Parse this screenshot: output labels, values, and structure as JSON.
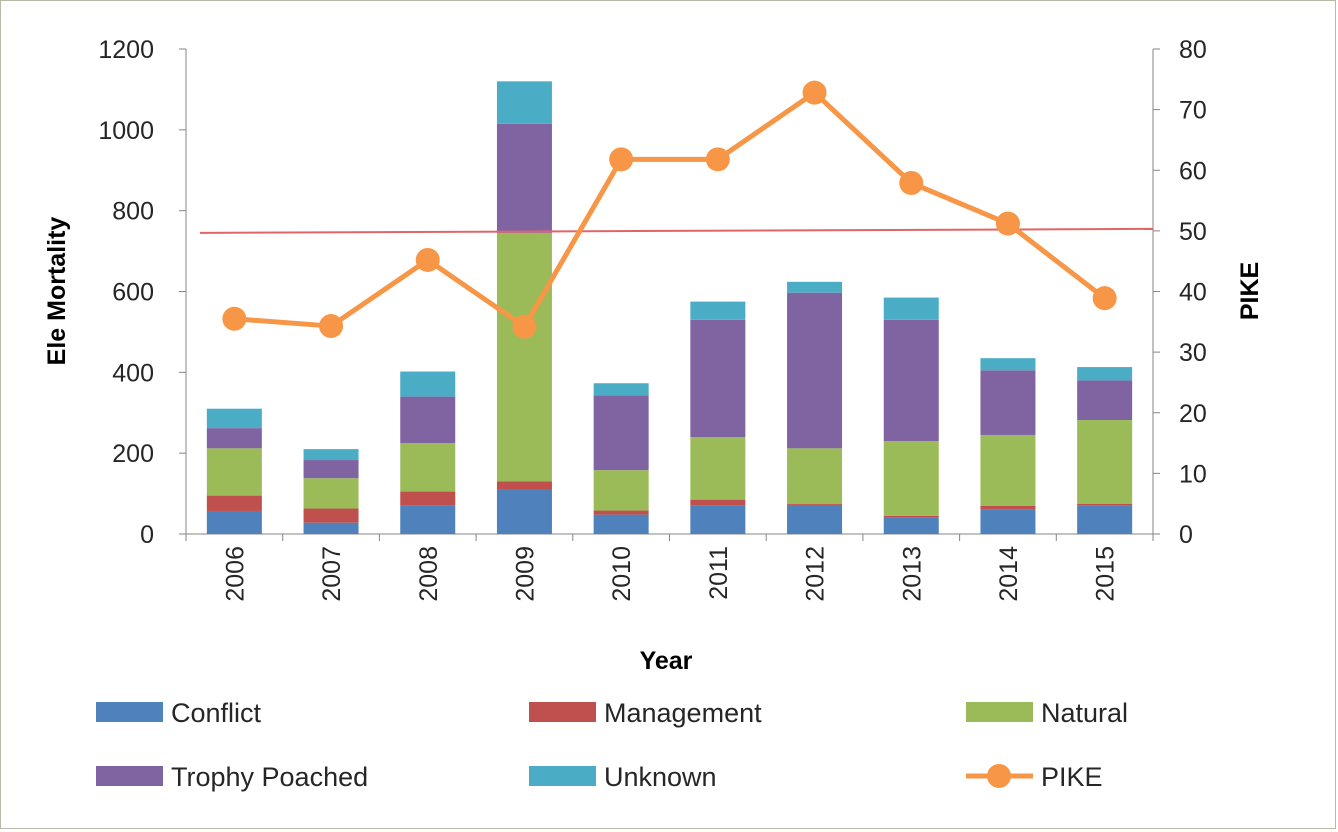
{
  "chart_data": {
    "type": "bar",
    "stacked": true,
    "categories": [
      "2006",
      "2007",
      "2008",
      "2009",
      "2010",
      "2011",
      "2012",
      "2013",
      "2014",
      "2015"
    ],
    "xlabel": "Year",
    "ylabel": "Ele Mortality",
    "y2label": "PIKE",
    "ylim": [
      0,
      1200
    ],
    "y2lim": [
      0,
      80
    ],
    "yticks": [
      "0",
      "200",
      "400",
      "600",
      "800",
      "1000",
      "1200"
    ],
    "y2ticks": [
      "0",
      "10",
      "20",
      "30",
      "40",
      "50",
      "60",
      "70",
      "80"
    ],
    "series": [
      {
        "name": "Conflict",
        "color": "#4F81BD",
        "values": [
          57,
          28,
          70,
          110,
          48,
          70,
          72,
          40,
          60,
          70
        ]
      },
      {
        "name": "Management",
        "color": "#C0504D",
        "values": [
          38,
          35,
          35,
          20,
          10,
          15,
          3,
          5,
          10,
          5
        ]
      },
      {
        "name": "Natural",
        "color": "#9BBB59",
        "values": [
          117,
          75,
          120,
          615,
          100,
          155,
          137,
          185,
          175,
          207
        ]
      },
      {
        "name": "Trophy Poached",
        "color": "#8064A2",
        "values": [
          50,
          45,
          115,
          270,
          185,
          290,
          385,
          300,
          160,
          98
        ]
      },
      {
        "name": "Unknown",
        "color": "#4BACC6",
        "values": [
          48,
          27,
          62,
          105,
          30,
          45,
          27,
          55,
          30,
          33
        ]
      }
    ],
    "line": {
      "name": "PIKE",
      "axis": "right",
      "color": "#F79646",
      "values": [
        35.5,
        34.3,
        45.2,
        34.2,
        61.8,
        61.8,
        72.8,
        57.9,
        51.2,
        38.9
      ]
    },
    "reference_line": {
      "axis": "right",
      "value": 50,
      "color": "#E06666"
    },
    "legend": {
      "position": "bottom"
    }
  }
}
